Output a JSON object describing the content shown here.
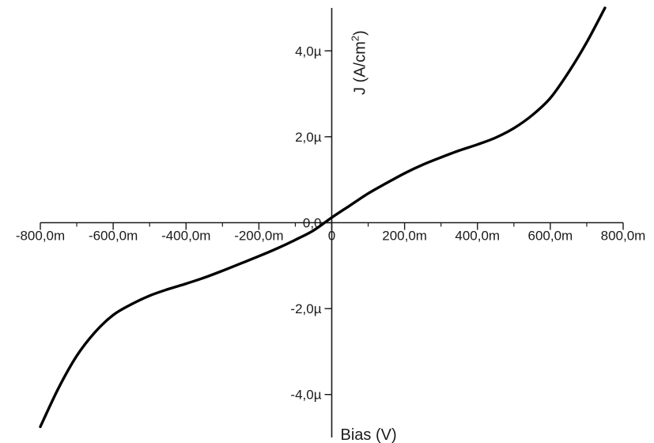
{
  "chart_data": {
    "type": "line",
    "title": "",
    "xlabel": "Bias (V)",
    "ylabel": "J (A/cm",
    "ylabel_superscript": "2",
    "ylabel_close": ")",
    "xlim": [
      -0.8,
      0.8
    ],
    "ylim": [
      -5e-06,
      5e-06
    ],
    "x_ticks": [
      -0.8,
      -0.6,
      -0.4,
      -0.2,
      0.0,
      0.2,
      0.4,
      0.6,
      0.8
    ],
    "x_tick_labels": [
      "-800,0m",
      "-600,0m",
      "-400,0m",
      "-200,0m",
      "0",
      "200,0m",
      "400,0m",
      "600,0m",
      "800,0m"
    ],
    "y_ticks": [
      -4e-06,
      -2e-06,
      0.0,
      2e-06,
      4e-06
    ],
    "y_tick_labels": [
      "-4,0µ",
      "-2,0µ",
      "0,0",
      "2,0µ",
      "4,0µ"
    ],
    "grid": false,
    "series": [
      {
        "color": "#000000",
        "x": [
          -0.8,
          -0.75,
          -0.7,
          -0.65,
          -0.6,
          -0.55,
          -0.5,
          -0.45,
          -0.4,
          -0.35,
          -0.3,
          -0.25,
          -0.2,
          -0.15,
          -0.1,
          -0.05,
          0.0,
          0.05,
          0.1,
          0.15,
          0.2,
          0.25,
          0.3,
          0.35,
          0.4,
          0.45,
          0.5,
          0.55,
          0.6,
          0.65,
          0.7,
          0.75
        ],
        "y": [
          -4.75e-06,
          -3.85e-06,
          -3.1e-06,
          -2.55e-06,
          -2.15e-06,
          -1.9e-06,
          -1.7e-06,
          -1.55e-06,
          -1.42e-06,
          -1.28e-06,
          -1.12e-06,
          -9.5e-07,
          -7.8e-07,
          -6e-07,
          -4e-07,
          -1.8e-07,
          1.2e-07,
          4e-07,
          6.8e-07,
          9.2e-07,
          1.15e-06,
          1.35e-06,
          1.52e-06,
          1.68e-06,
          1.82e-06,
          1.98e-06,
          2.2e-06,
          2.5e-06,
          2.9e-06,
          3.5e-06,
          4.2e-06,
          5e-06
        ]
      }
    ]
  }
}
